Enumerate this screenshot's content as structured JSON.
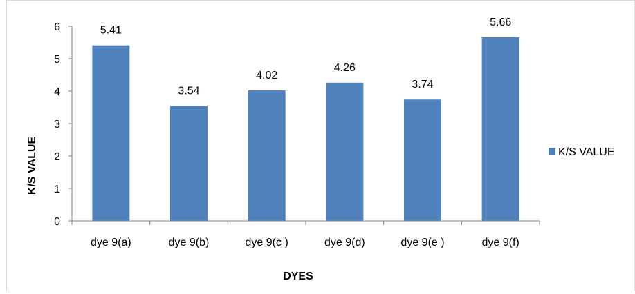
{
  "chart_data": {
    "type": "bar",
    "categories": [
      "dye 9(a)",
      "dye 9(b)",
      "dye 9(c )",
      "dye 9(d)",
      "dye 9(e )",
      "dye 9(f)"
    ],
    "series": [
      {
        "name": "K/S VALUE",
        "values": [
          5.41,
          3.54,
          4.02,
          4.26,
          3.74,
          5.66
        ],
        "color": "#4F81BD"
      }
    ],
    "data_labels": [
      "5.41",
      "3.54",
      "4.02",
      "4.26",
      "3.74",
      "5.66"
    ],
    "yticks": [
      "0",
      "1",
      "2",
      "3",
      "4",
      "5",
      "6"
    ],
    "ylim": [
      0,
      6
    ],
    "xlabel": "DYES",
    "ylabel": "K/S VALUE",
    "legend": {
      "position": "right",
      "label": "K/S VALUE"
    },
    "grid": false
  }
}
